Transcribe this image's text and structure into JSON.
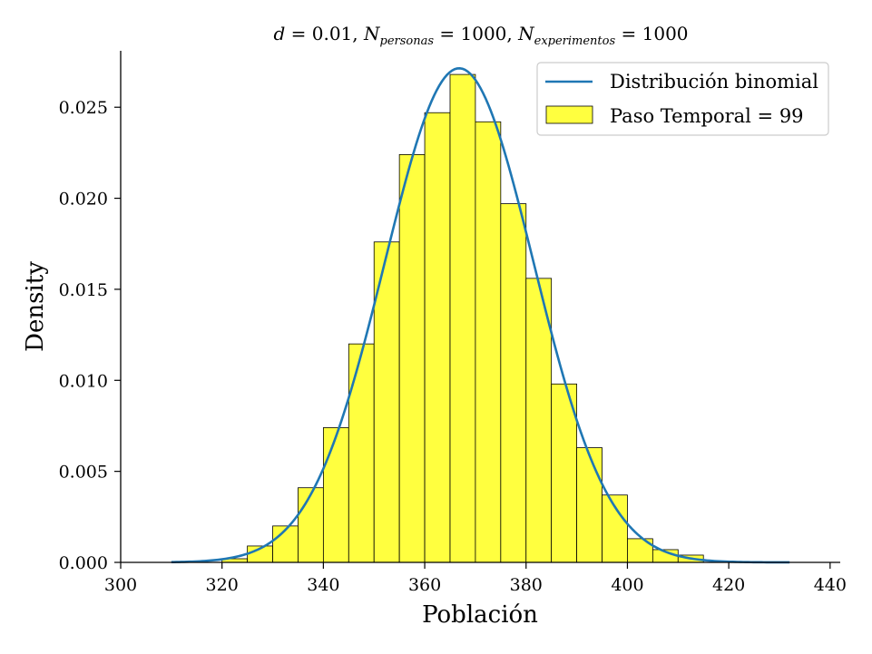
{
  "chart_data": {
    "type": "bar",
    "title": "d = 0.01, N_personas = 1000, N_experimentos = 1000",
    "title_parts": {
      "d": "d",
      "d_val": " = 0.01, ",
      "n1": "N",
      "n1_sub": "personas",
      "n1_val": " = 1000, ",
      "n2": "N",
      "n2_sub": "experimentos",
      "n2_val": " = 1000"
    },
    "xlabel": "Población",
    "ylabel": "Density",
    "xlim": [
      300,
      442
    ],
    "ylim": [
      0,
      0.0281
    ],
    "xticks": [
      "300",
      "320",
      "340",
      "360",
      "380",
      "400",
      "420",
      "440"
    ],
    "yticks": [
      "0.000",
      "0.005",
      "0.010",
      "0.015",
      "0.020",
      "0.025"
    ],
    "bin_width": 5,
    "histogram": {
      "name": "Paso Temporal = 99",
      "color": "#ffff3f",
      "bins": [
        {
          "x0": 320,
          "value": 0.0002
        },
        {
          "x0": 325,
          "value": 0.0009
        },
        {
          "x0": 330,
          "value": 0.002
        },
        {
          "x0": 335,
          "value": 0.0041
        },
        {
          "x0": 340,
          "value": 0.0074
        },
        {
          "x0": 345,
          "value": 0.012
        },
        {
          "x0": 350,
          "value": 0.0176
        },
        {
          "x0": 355,
          "value": 0.0224
        },
        {
          "x0": 360,
          "value": 0.0247
        },
        {
          "x0": 365,
          "value": 0.0268
        },
        {
          "x0": 370,
          "value": 0.0242
        },
        {
          "x0": 375,
          "value": 0.0197
        },
        {
          "x0": 380,
          "value": 0.0156
        },
        {
          "x0": 385,
          "value": 0.0098
        },
        {
          "x0": 390,
          "value": 0.0063
        },
        {
          "x0": 395,
          "value": 0.0037
        },
        {
          "x0": 400,
          "value": 0.0013
        },
        {
          "x0": 405,
          "value": 0.0007
        },
        {
          "x0": 410,
          "value": 0.0004
        }
      ]
    },
    "curve": {
      "name": "Distribución binomial",
      "color": "#1f77b4",
      "mean": 366.8,
      "std": 14.7,
      "x_range": [
        310,
        432
      ]
    },
    "legend": {
      "position": "top-right",
      "entries": [
        "Distribución binomial",
        "Paso Temporal = 99"
      ]
    },
    "grid": false
  }
}
